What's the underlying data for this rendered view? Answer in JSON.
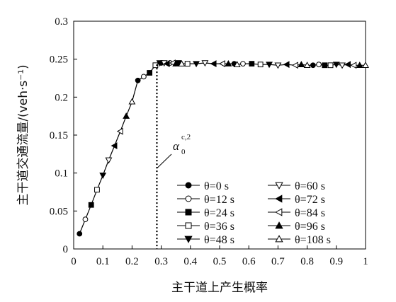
{
  "chart_data": {
    "type": "line",
    "xlabel": "主干道上产生概率",
    "ylabel": "主干道交通流量/(veh·s⁻¹)",
    "xlim": [
      0,
      1
    ],
    "ylim": [
      0,
      0.3
    ],
    "x_ticks": [
      "0",
      "0.1",
      "0.2",
      "0.3",
      "0.4",
      "0.5",
      "0.6",
      "0.7",
      "0.8",
      "0.9",
      "1"
    ],
    "y_ticks": [
      "0",
      "0.05",
      "0.1",
      "0.15",
      "0.2",
      "0.25",
      "0.3"
    ],
    "critical_point": {
      "label": "α",
      "sub": "0",
      "sup": "c,2",
      "x": 0.285,
      "y": 0.243
    },
    "legend_placement": "lower-right",
    "series": [
      {
        "name": "θ=0 s",
        "marker": "circle-filled",
        "points": [
          [
            0.02,
            0.02
          ],
          [
            0.22,
            0.222
          ],
          [
            0.3,
            0.245
          ],
          [
            0.55,
            0.244
          ],
          [
            0.82,
            0.242
          ]
        ]
      },
      {
        "name": "θ=12 s",
        "marker": "circle-open",
        "points": [
          [
            0.04,
            0.039
          ],
          [
            0.24,
            0.227
          ],
          [
            0.33,
            0.245
          ],
          [
            0.58,
            0.244
          ],
          [
            0.84,
            0.243
          ]
        ]
      },
      {
        "name": "θ=24 s",
        "marker": "square-filled",
        "points": [
          [
            0.06,
            0.058
          ],
          [
            0.26,
            0.232
          ],
          [
            0.36,
            0.245
          ],
          [
            0.61,
            0.244
          ],
          [
            0.86,
            0.242
          ]
        ]
      },
      {
        "name": "θ=36 s",
        "marker": "square-open",
        "points": [
          [
            0.08,
            0.078
          ],
          [
            0.28,
            0.242
          ],
          [
            0.39,
            0.244
          ],
          [
            0.64,
            0.243
          ],
          [
            0.88,
            0.242
          ]
        ]
      },
      {
        "name": "θ=48 s",
        "marker": "triangle-down-filled",
        "points": [
          [
            0.1,
            0.097
          ],
          [
            0.295,
            0.245
          ],
          [
            0.42,
            0.244
          ],
          [
            0.67,
            0.243
          ],
          [
            0.9,
            0.243
          ]
        ]
      },
      {
        "name": "θ=60 s",
        "marker": "triangle-down-open",
        "points": [
          [
            0.12,
            0.117
          ],
          [
            0.31,
            0.245
          ],
          [
            0.45,
            0.245
          ],
          [
            0.7,
            0.242
          ],
          [
            0.92,
            0.242
          ]
        ]
      },
      {
        "name": "θ=72 s",
        "marker": "triangle-left-filled",
        "points": [
          [
            0.14,
            0.136
          ],
          [
            0.32,
            0.244
          ],
          [
            0.48,
            0.244
          ],
          [
            0.73,
            0.243
          ],
          [
            0.94,
            0.243
          ]
        ]
      },
      {
        "name": "θ=84 s",
        "marker": "triangle-left-open",
        "points": [
          [
            0.16,
            0.155
          ],
          [
            0.34,
            0.245
          ],
          [
            0.51,
            0.244
          ],
          [
            0.76,
            0.242
          ],
          [
            0.96,
            0.242
          ]
        ]
      },
      {
        "name": "θ=96 s",
        "marker": "triangle-up-filled",
        "points": [
          [
            0.18,
            0.175
          ],
          [
            0.35,
            0.244
          ],
          [
            0.53,
            0.244
          ],
          [
            0.78,
            0.243
          ],
          [
            0.98,
            0.242
          ]
        ]
      },
      {
        "name": "θ=108 s",
        "marker": "triangle-up-open",
        "points": [
          [
            0.2,
            0.194
          ],
          [
            0.37,
            0.244
          ],
          [
            0.56,
            0.243
          ],
          [
            0.8,
            0.242
          ],
          [
            1.0,
            0.242
          ]
        ]
      }
    ]
  }
}
